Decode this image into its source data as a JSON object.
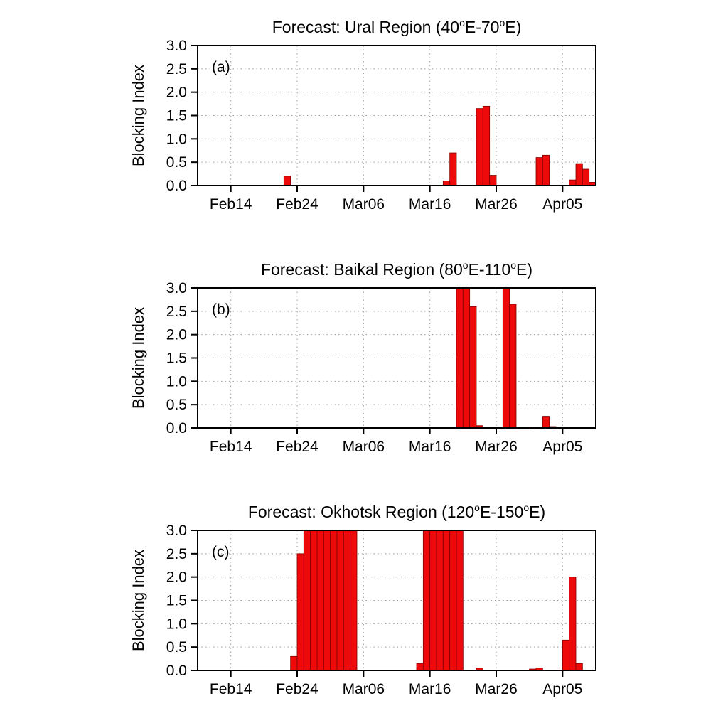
{
  "figure": {
    "background": "#ffffff",
    "panel_count": 3
  },
  "chart_data": [
    {
      "type": "bar",
      "panel_label": "(a)",
      "title": "Forecast: Ural Region (40°E-70°E)",
      "ylabel": "Blocking Index",
      "xlabel": "",
      "ylim": [
        0,
        3.0
      ],
      "yticks": [
        0.0,
        0.5,
        1.0,
        1.5,
        2.0,
        2.5,
        3.0
      ],
      "xlim": [
        0,
        60
      ],
      "xticks": [
        5,
        15,
        25,
        35,
        45,
        55
      ],
      "xtick_labels": [
        "Feb14",
        "Feb24",
        "Mar06",
        "Mar16",
        "Mar26",
        "Apr05"
      ],
      "grid": true,
      "legend": "none",
      "bar_color": "#ee0a0a",
      "bar_edge_color": "#7f0000",
      "bars": [
        {
          "date": "Feb22",
          "day": 13,
          "value": 0.2
        },
        {
          "date": "Mar18",
          "day": 37,
          "value": 0.1
        },
        {
          "date": "Mar19",
          "day": 38,
          "value": 0.7
        },
        {
          "date": "Mar23",
          "day": 42,
          "value": 1.65
        },
        {
          "date": "Mar24",
          "day": 43,
          "value": 1.7
        },
        {
          "date": "Mar25",
          "day": 44,
          "value": 0.22
        },
        {
          "date": "Apr01",
          "day": 51,
          "value": 0.6
        },
        {
          "date": "Apr02",
          "day": 52,
          "value": 0.65
        },
        {
          "date": "Apr06",
          "day": 56,
          "value": 0.12
        },
        {
          "date": "Apr07",
          "day": 57,
          "value": 0.47
        },
        {
          "date": "Apr08",
          "day": 58,
          "value": 0.35
        },
        {
          "date": "Apr09",
          "day": 59,
          "value": 0.07
        }
      ]
    },
    {
      "type": "bar",
      "panel_label": "(b)",
      "title": "Forecast: Baikal Region (80°E-110°E)",
      "ylabel": "Blocking Index",
      "xlabel": "",
      "ylim": [
        0,
        3.0
      ],
      "yticks": [
        0.0,
        0.5,
        1.0,
        1.5,
        2.0,
        2.5,
        3.0
      ],
      "xlim": [
        0,
        60
      ],
      "xticks": [
        5,
        15,
        25,
        35,
        45,
        55
      ],
      "xtick_labels": [
        "Feb14",
        "Feb24",
        "Mar06",
        "Mar16",
        "Mar26",
        "Apr05"
      ],
      "grid": true,
      "legend": "none",
      "bar_color": "#ee0a0a",
      "bar_edge_color": "#7f0000",
      "bars": [
        {
          "date": "Mar20",
          "day": 39,
          "value": 3.0
        },
        {
          "date": "Mar21",
          "day": 40,
          "value": 3.0
        },
        {
          "date": "Mar22",
          "day": 41,
          "value": 2.6
        },
        {
          "date": "Mar23",
          "day": 42,
          "value": 0.05
        },
        {
          "date": "Mar27",
          "day": 46,
          "value": 3.0
        },
        {
          "date": "Mar28",
          "day": 47,
          "value": 2.65
        },
        {
          "date": "Mar29",
          "day": 48,
          "value": 0.02
        },
        {
          "date": "Mar30",
          "day": 49,
          "value": 0.02
        },
        {
          "date": "Apr02",
          "day": 52,
          "value": 0.25
        },
        {
          "date": "Apr03",
          "day": 53,
          "value": 0.03
        }
      ]
    },
    {
      "type": "bar",
      "panel_label": "(c)",
      "title": "Forecast: Okhotsk Region (120°E-150°E)",
      "ylabel": "Blocking Index",
      "xlabel": "",
      "ylim": [
        0,
        3.0
      ],
      "yticks": [
        0.0,
        0.5,
        1.0,
        1.5,
        2.0,
        2.5,
        3.0
      ],
      "xlim": [
        0,
        60
      ],
      "xticks": [
        5,
        15,
        25,
        35,
        45,
        55
      ],
      "xtick_labels": [
        "Feb14",
        "Feb24",
        "Mar06",
        "Mar16",
        "Mar26",
        "Apr05"
      ],
      "grid": true,
      "legend": "none",
      "bar_color": "#ee0a0a",
      "bar_edge_color": "#7f0000",
      "bars": [
        {
          "date": "Feb23",
          "day": 14,
          "value": 0.3
        },
        {
          "date": "Feb24",
          "day": 15,
          "value": 2.5
        },
        {
          "date": "Feb25",
          "day": 16,
          "value": 3.0
        },
        {
          "date": "Feb26",
          "day": 17,
          "value": 3.0
        },
        {
          "date": "Feb27",
          "day": 18,
          "value": 3.0
        },
        {
          "date": "Feb28",
          "day": 19,
          "value": 3.0
        },
        {
          "date": "Mar01",
          "day": 20,
          "value": 3.0
        },
        {
          "date": "Mar02",
          "day": 21,
          "value": 3.0
        },
        {
          "date": "Mar03",
          "day": 22,
          "value": 3.0
        },
        {
          "date": "Mar04",
          "day": 23,
          "value": 3.0
        },
        {
          "date": "Mar14",
          "day": 33,
          "value": 0.15
        },
        {
          "date": "Mar15",
          "day": 34,
          "value": 3.0
        },
        {
          "date": "Mar16",
          "day": 35,
          "value": 3.0
        },
        {
          "date": "Mar17",
          "day": 36,
          "value": 3.0
        },
        {
          "date": "Mar18",
          "day": 37,
          "value": 3.0
        },
        {
          "date": "Mar19",
          "day": 38,
          "value": 3.0
        },
        {
          "date": "Mar20",
          "day": 39,
          "value": 3.0
        },
        {
          "date": "Mar23",
          "day": 42,
          "value": 0.05
        },
        {
          "date": "Mar31",
          "day": 50,
          "value": 0.03
        },
        {
          "date": "Apr01",
          "day": 51,
          "value": 0.05
        },
        {
          "date": "Apr05",
          "day": 55,
          "value": 0.65
        },
        {
          "date": "Apr06",
          "day": 56,
          "value": 2.0
        },
        {
          "date": "Apr07",
          "day": 57,
          "value": 0.15
        }
      ]
    }
  ]
}
